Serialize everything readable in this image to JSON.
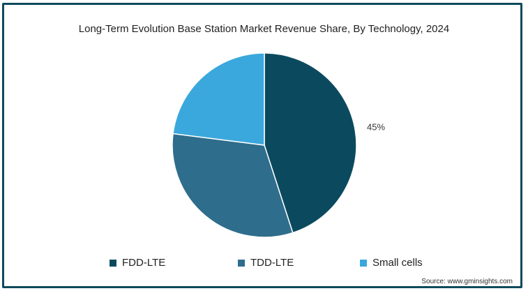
{
  "chart_data": {
    "type": "pie",
    "title": "Long-Term Evolution Base Station Market Revenue Share, By Technology, 2024",
    "categories": [
      "FDD-LTE",
      "TDD-LTE",
      "Small cells"
    ],
    "values": [
      45,
      32,
      23
    ],
    "colors": [
      "#0b4a5e",
      "#2f6d8c",
      "#3aa8dc"
    ],
    "slice_labels": [
      "45%",
      "",
      ""
    ],
    "legend_position": "bottom"
  },
  "source": "Source: www.gminsights.com"
}
